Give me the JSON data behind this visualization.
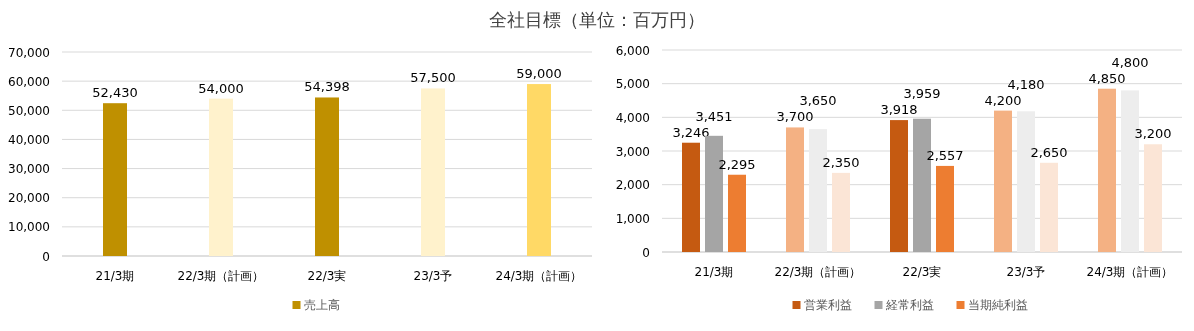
{
  "chart_data": [
    {
      "type": "bar",
      "title": "全社目標（単位：百万円）",
      "categories": [
        "21/3期",
        "22/3期（計画）",
        "22/3実",
        "23/3予",
        "24/3期（計画）"
      ],
      "series": [
        {
          "name": "売上高",
          "color": "#bf9000",
          "colors": [
            "#bf9000",
            "#fff2cc",
            "#bf9000",
            "#fff2cc",
            "#ffd966"
          ],
          "values": [
            52430,
            54000,
            54398,
            57500,
            59000
          ],
          "value_labels": [
            "52,430",
            "54,000",
            "54,398",
            "57,500",
            "59,000"
          ]
        }
      ],
      "ylim": [
        0,
        70000
      ],
      "yticks": [
        0,
        {
          "value": 10000,
          "label": "10,000"
        },
        {
          "value": 20000,
          "label": "20,000"
        },
        {
          "value": 30000,
          "label": "30,000"
        },
        {
          "value": 40000,
          "label": "40,000"
        },
        {
          "value": 50000,
          "label": "50,000"
        },
        {
          "value": 60000,
          "label": "60,000"
        },
        {
          "value": 70000,
          "label": "70,000"
        }
      ],
      "grid": "y",
      "legend": "bottom"
    },
    {
      "type": "bar",
      "categories": [
        "21/3期",
        "22/3期（計画）",
        "22/3実",
        "23/3予",
        "24/3期（計画）"
      ],
      "series": [
        {
          "name": "営業利益",
          "color": "#c55a11",
          "colors": [
            "#c55a11",
            "#f4b183",
            "#c55a11",
            "#f4b183",
            "#f4b183"
          ],
          "values": [
            3246,
            3700,
            3918,
            4200,
            4850
          ],
          "value_labels": [
            "3,246",
            "3,700",
            "3,918",
            "4,200",
            "4,850"
          ]
        },
        {
          "name": "経常利益",
          "color": "#a5a5a5",
          "colors": [
            "#a5a5a5",
            "#ededed",
            "#a5a5a5",
            "#ededed",
            "#ededed"
          ],
          "values": [
            3451,
            3650,
            3959,
            4180,
            4800
          ],
          "value_labels": [
            "3,451",
            "3,650",
            "3,959",
            "4,180",
            "4,800"
          ]
        },
        {
          "name": "当期純利益",
          "color": "#ed7d31",
          "colors": [
            "#ed7d31",
            "#fbe5d6",
            "#ed7d31",
            "#fbe5d6",
            "#fbe5d6"
          ],
          "values": [
            2295,
            2350,
            2557,
            2650,
            3200
          ],
          "value_labels": [
            "2,295",
            "2,350",
            "2,557",
            "2,650",
            "3,200"
          ]
        }
      ],
      "ylim": [
        0,
        6000
      ],
      "yticks": [
        0,
        {
          "value": 1000,
          "label": "1,000"
        },
        {
          "value": 2000,
          "label": "2,000"
        },
        {
          "value": 3000,
          "label": "3,000"
        },
        {
          "value": 4000,
          "label": "4,000"
        },
        {
          "value": 5000,
          "label": "5,000"
        },
        {
          "value": 6000,
          "label": "6,000"
        }
      ],
      "grid": "y",
      "legend": "bottom"
    }
  ]
}
